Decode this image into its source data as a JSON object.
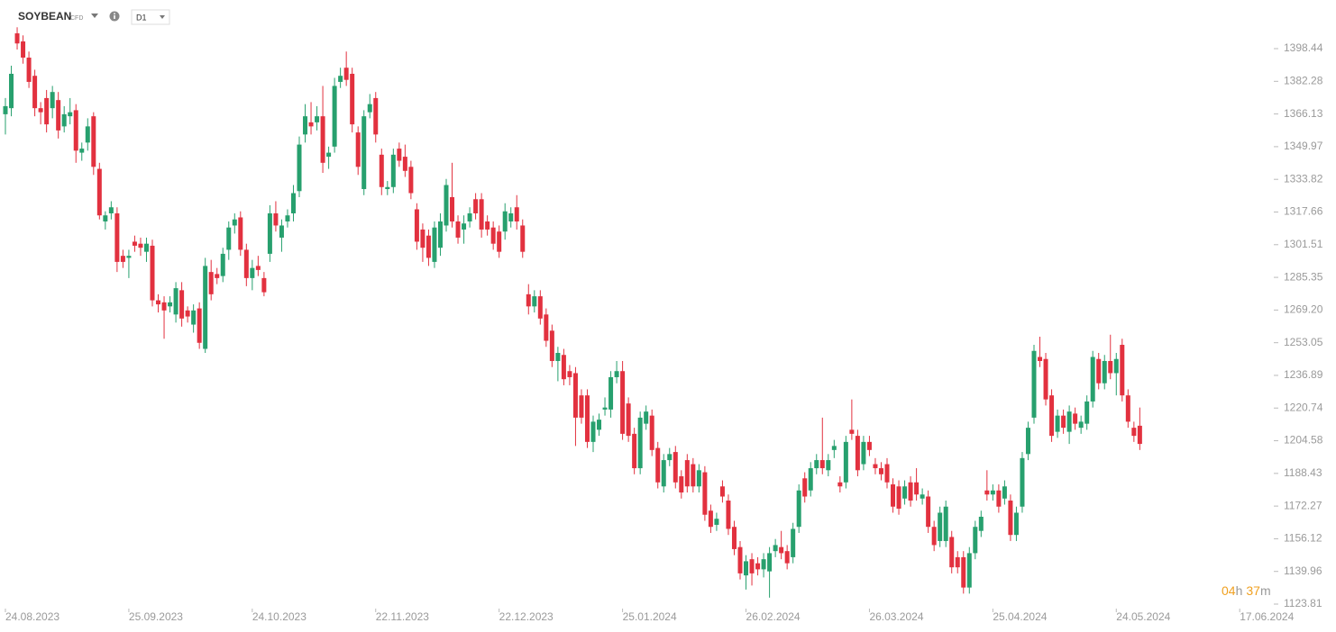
{
  "chart_data": {
    "type": "candlestick",
    "title": "SOYBEAN",
    "subtitle": "CFD",
    "timeframe": "D1",
    "countdown": [
      "04",
      "h",
      "37",
      "m"
    ],
    "up_color": "#27a06e",
    "down_color": "#e2313f",
    "ylim": [
      1119.81,
      1409.13
    ],
    "yticks": [
      1398.44,
      1382.28,
      1366.13,
      1349.97,
      1333.82,
      1317.66,
      1301.51,
      1285.35,
      {
        "value": 1269.2,
        "label": "1269.20"
      },
      1253.05,
      1236.89,
      1220.74,
      1204.58,
      1188.43,
      1172.27,
      1156.12,
      1139.96,
      1123.81
    ],
    "xticks": [
      "24.08.2023",
      "25.09.2023",
      "24.10.2023",
      "22.11.2023",
      "22.12.2023",
      "25.01.2024",
      "26.02.2024",
      "26.03.2024",
      "25.04.2024",
      "24.05.2024",
      "17.06.2024"
    ],
    "ohlc": [
      [
        1366,
        1374,
        1356,
        1370
      ],
      [
        1369,
        1390,
        1365,
        1386
      ],
      [
        1406,
        1409,
        1398,
        1401
      ],
      [
        1402,
        1405,
        1391,
        1394
      ],
      [
        1394,
        1397,
        1379,
        1382
      ],
      [
        1385,
        1388,
        1365,
        1369
      ],
      [
        1369,
        1372,
        1361,
        1367
      ],
      [
        1374,
        1378,
        1357,
        1361
      ],
      [
        1369,
        1380,
        1364,
        1377
      ],
      [
        1373,
        1377,
        1354,
        1358
      ],
      [
        1360,
        1370,
        1357,
        1366
      ],
      [
        1365,
        1374,
        1361,
        1367
      ],
      [
        1368,
        1371,
        1342,
        1348
      ],
      [
        1347,
        1352,
        1343,
        1349
      ],
      [
        1352,
        1364,
        1348,
        1360
      ],
      [
        1365,
        1367,
        1336,
        1340
      ],
      [
        1339,
        1342,
        1314,
        1316
      ],
      [
        1313,
        1318,
        1309,
        1316
      ],
      [
        1317,
        1323,
        1314,
        1320
      ],
      [
        1317,
        1320,
        1288,
        1293
      ],
      [
        1296,
        1299,
        1290,
        1293
      ],
      [
        1295,
        1299,
        1285,
        1296
      ],
      [
        1303,
        1306,
        1298,
        1301
      ],
      [
        1302,
        1305,
        1296,
        1300
      ],
      [
        1298,
        1305,
        1293,
        1302
      ],
      [
        1301,
        1304,
        1271,
        1274
      ],
      [
        1274,
        1277,
        1268,
        1272
      ],
      [
        1273,
        1276,
        1255,
        1269
      ],
      [
        1271,
        1276,
        1268,
        1273
      ],
      [
        1267,
        1283,
        1263,
        1280
      ],
      [
        1279,
        1283,
        1261,
        1265
      ],
      [
        1269,
        1271,
        1263,
        1266
      ],
      [
        1262,
        1272,
        1258,
        1269
      ],
      [
        1270,
        1273,
        1250,
        1253
      ],
      [
        1250,
        1295,
        1248,
        1291
      ],
      [
        1288,
        1294,
        1274,
        1277
      ],
      [
        1287,
        1290,
        1282,
        1285
      ],
      [
        1286,
        1300,
        1283,
        1297
      ],
      [
        1299,
        1313,
        1294,
        1310
      ],
      [
        1311,
        1317,
        1307,
        1314
      ],
      [
        1315,
        1318,
        1296,
        1299
      ],
      [
        1299,
        1302,
        1281,
        1285
      ],
      [
        1285,
        1294,
        1279,
        1290
      ],
      [
        1291,
        1296,
        1286,
        1289
      ],
      [
        1285,
        1288,
        1276,
        1278
      ],
      [
        1297,
        1321,
        1293,
        1317
      ],
      [
        1317,
        1323,
        1308,
        1311
      ],
      [
        1305,
        1314,
        1298,
        1311
      ],
      [
        1313,
        1319,
        1310,
        1316
      ],
      [
        1317,
        1331,
        1313,
        1327
      ],
      [
        1328,
        1355,
        1325,
        1351
      ],
      [
        1356,
        1371,
        1352,
        1365
      ],
      [
        1362,
        1372,
        1356,
        1360
      ],
      [
        1362,
        1370,
        1358,
        1365
      ],
      [
        1365,
        1380,
        1337,
        1342
      ],
      [
        1345,
        1350,
        1339,
        1347
      ],
      [
        1350,
        1384,
        1347,
        1380
      ],
      [
        1382,
        1389,
        1379,
        1385
      ],
      [
        1389,
        1397,
        1380,
        1383
      ],
      [
        1386,
        1389,
        1357,
        1361
      ],
      [
        1357,
        1360,
        1336,
        1340
      ],
      [
        1329,
        1368,
        1326,
        1365
      ],
      [
        1367,
        1376,
        1364,
        1371
      ],
      [
        1374,
        1377,
        1352,
        1356
      ],
      [
        1346,
        1349,
        1326,
        1330
      ],
      [
        1329,
        1333,
        1326,
        1330
      ],
      [
        1330,
        1349,
        1327,
        1346
      ],
      [
        1349,
        1352,
        1340,
        1343
      ],
      [
        1345,
        1351,
        1335,
        1338
      ],
      [
        1340,
        1343,
        1324,
        1327
      ],
      [
        1319,
        1322,
        1299,
        1303
      ],
      [
        1309,
        1312,
        1293,
        1300
      ],
      [
        1306,
        1309,
        1291,
        1295
      ],
      [
        1293,
        1313,
        1290,
        1310
      ],
      [
        1300,
        1317,
        1296,
        1313
      ],
      [
        1311,
        1334,
        1308,
        1331
      ],
      [
        1325,
        1342,
        1310,
        1313
      ],
      [
        1313,
        1316,
        1302,
        1305
      ],
      [
        1309,
        1316,
        1302,
        1312
      ],
      [
        1313,
        1320,
        1310,
        1317
      ],
      [
        1324,
        1327,
        1314,
        1317
      ],
      [
        1324,
        1327,
        1305,
        1309
      ],
      [
        1313,
        1316,
        1306,
        1309
      ],
      [
        1310,
        1313,
        1299,
        1302
      ],
      [
        1308,
        1311,
        1295,
        1298
      ],
      [
        1308,
        1322,
        1304,
        1318
      ],
      [
        1313,
        1320,
        1310,
        1317
      ],
      [
        1320,
        1326,
        1309,
        1313
      ],
      [
        1311,
        1314,
        1295,
        1298
      ],
      [
        1277,
        1282,
        1267,
        1271
      ],
      [
        1271,
        1279,
        1268,
        1276
      ],
      [
        1276,
        1279,
        1262,
        1265
      ],
      [
        1267,
        1270,
        1251,
        1254
      ],
      [
        1259,
        1262,
        1241,
        1244
      ],
      [
        1244,
        1251,
        1234,
        1248
      ],
      [
        1247,
        1250,
        1232,
        1235
      ],
      [
        1239,
        1242,
        1232,
        1236
      ],
      [
        1238,
        1241,
        1202,
        1216
      ],
      [
        1227,
        1230,
        1213,
        1216
      ],
      [
        1227,
        1230,
        1201,
        1204
      ],
      [
        1204,
        1217,
        1199,
        1214
      ],
      [
        1210,
        1218,
        1207,
        1215
      ],
      [
        1220,
        1226,
        1217,
        1221
      ],
      [
        1220,
        1239,
        1216,
        1236
      ],
      [
        1236,
        1244,
        1233,
        1239
      ],
      [
        1239,
        1244,
        1205,
        1208
      ],
      [
        1223,
        1226,
        1204,
        1207
      ],
      [
        1208,
        1211,
        1188,
        1191
      ],
      [
        1191,
        1219,
        1188,
        1216
      ],
      [
        1213,
        1222,
        1210,
        1219
      ],
      [
        1217,
        1220,
        1197,
        1200
      ],
      [
        1201,
        1204,
        1181,
        1184
      ],
      [
        1182,
        1198,
        1179,
        1195
      ],
      [
        1195,
        1201,
        1192,
        1198
      ],
      [
        1199,
        1202,
        1181,
        1184
      ],
      [
        1187,
        1190,
        1176,
        1179
      ],
      [
        1195,
        1198,
        1179,
        1182
      ],
      [
        1193,
        1196,
        1179,
        1182
      ],
      [
        1182,
        1193,
        1179,
        1190
      ],
      [
        1189,
        1192,
        1165,
        1168
      ],
      [
        1170,
        1173,
        1159,
        1162
      ],
      [
        1163,
        1169,
        1160,
        1166
      ],
      [
        1182,
        1185,
        1174,
        1177
      ],
      [
        1175,
        1178,
        1158,
        1161
      ],
      [
        1162,
        1165,
        1148,
        1151
      ],
      [
        1152,
        1155,
        1136,
        1139
      ],
      [
        1138,
        1148,
        1131,
        1145
      ],
      [
        1146,
        1149,
        1133,
        1139
      ],
      [
        1144,
        1147,
        1138,
        1141
      ],
      [
        1141,
        1149,
        1137,
        1146
      ],
      [
        1140,
        1152,
        1127,
        1149
      ],
      [
        1150,
        1156,
        1147,
        1153
      ],
      [
        1152,
        1160,
        1146,
        1149
      ],
      [
        1150,
        1153,
        1141,
        1144
      ],
      [
        1147,
        1164,
        1144,
        1161
      ],
      [
        1162,
        1183,
        1159,
        1180
      ],
      [
        1186,
        1189,
        1174,
        1177
      ],
      [
        1180,
        1194,
        1177,
        1191
      ],
      [
        1191,
        1198,
        1188,
        1195
      ],
      [
        1195,
        1216,
        1188,
        1191
      ],
      [
        1190,
        1198,
        1187,
        1195
      ],
      [
        1200,
        1205,
        1196,
        1202
      ],
      [
        1184,
        1187,
        1179,
        1182
      ],
      [
        1184,
        1207,
        1181,
        1204
      ],
      [
        1210,
        1225,
        1205,
        1208
      ],
      [
        1207,
        1210,
        1187,
        1190
      ],
      [
        1193,
        1207,
        1190,
        1204
      ],
      [
        1204,
        1207,
        1197,
        1200
      ],
      [
        1193,
        1196,
        1188,
        1191
      ],
      [
        1191,
        1194,
        1185,
        1188
      ],
      [
        1193,
        1196,
        1181,
        1184
      ],
      [
        1183,
        1186,
        1169,
        1172
      ],
      [
        1182,
        1185,
        1168,
        1171
      ],
      [
        1176,
        1185,
        1173,
        1182
      ],
      [
        1184,
        1187,
        1172,
        1175
      ],
      [
        1184,
        1191,
        1175,
        1178
      ],
      [
        1176,
        1181,
        1173,
        1178
      ],
      [
        1177,
        1180,
        1159,
        1162
      ],
      [
        1162,
        1165,
        1150,
        1153
      ],
      [
        1155,
        1172,
        1152,
        1169
      ],
      [
        1155,
        1175,
        1152,
        1172
      ],
      [
        1157,
        1160,
        1139,
        1142
      ],
      [
        1147,
        1150,
        1139,
        1142
      ],
      [
        1147,
        1150,
        1129,
        1132
      ],
      [
        1132,
        1152,
        1129,
        1149
      ],
      [
        1149,
        1165,
        1146,
        1162
      ],
      [
        1160,
        1170,
        1157,
        1167
      ],
      [
        1180,
        1190,
        1175,
        1178
      ],
      [
        1178,
        1183,
        1175,
        1180
      ],
      [
        1180,
        1183,
        1169,
        1172
      ],
      [
        1176,
        1185,
        1173,
        1182
      ],
      [
        1175,
        1178,
        1155,
        1158
      ],
      [
        1158,
        1172,
        1155,
        1169
      ],
      [
        1172,
        1199,
        1169,
        1196
      ],
      [
        1198,
        1214,
        1195,
        1211
      ],
      [
        1216,
        1252,
        1213,
        1249
      ],
      [
        1246,
        1256,
        1241,
        1244
      ],
      [
        1245,
        1248,
        1222,
        1225
      ],
      [
        1227,
        1230,
        1204,
        1207
      ],
      [
        1209,
        1220,
        1206,
        1217
      ],
      [
        1217,
        1220,
        1208,
        1211
      ],
      [
        1209,
        1222,
        1203,
        1219
      ],
      [
        1218,
        1221,
        1210,
        1213
      ],
      [
        1211,
        1217,
        1208,
        1214
      ],
      [
        1213,
        1227,
        1210,
        1224
      ],
      [
        1224,
        1249,
        1221,
        1246
      ],
      [
        1245,
        1248,
        1230,
        1233
      ],
      [
        1233,
        1247,
        1230,
        1244
      ],
      [
        1244,
        1257,
        1235,
        1238
      ],
      [
        1238,
        1248,
        1227,
        1245
      ],
      [
        1252,
        1255,
        1224,
        1227
      ],
      [
        1227,
        1230,
        1211,
        1214
      ],
      [
        1211,
        1214,
        1204,
        1207
      ],
      [
        1212,
        1221,
        1200,
        1203
      ]
    ]
  }
}
